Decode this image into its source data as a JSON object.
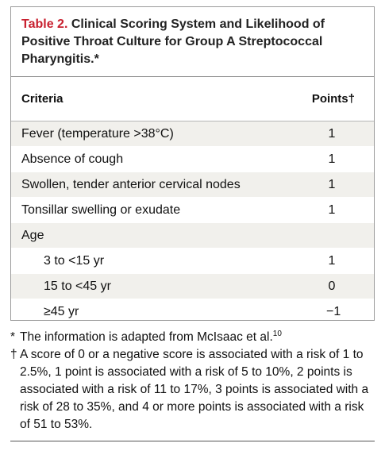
{
  "table": {
    "number": "Table 2.",
    "title": "Clinical Scoring System and Likelihood of Positive Throat Culture for Group A Streptococcal Pharyngitis.*",
    "headers": {
      "criteria": "Criteria",
      "points": "Points†"
    },
    "rows": [
      {
        "label": "Fever (temperature >38°C)",
        "points": "1"
      },
      {
        "label": "Absence of cough",
        "points": "1"
      },
      {
        "label": "Swollen, tender anterior cervical nodes",
        "points": "1"
      },
      {
        "label": "Tonsillar swelling or exudate",
        "points": "1"
      },
      {
        "label": "Age",
        "points": ""
      },
      {
        "label": "3 to <15 yr",
        "points": "1"
      },
      {
        "label": "15 to <45 yr",
        "points": "0"
      },
      {
        "label": "≥45 yr",
        "points": "−1"
      }
    ]
  },
  "notes": {
    "star_mark": "*",
    "star_text": "The information is adapted from McIsaac et al.",
    "star_ref": "10",
    "dagger_mark": "†",
    "dagger_text": "A score of 0 or a negative score is associated with a risk of 1 to 2.5%, 1 point is associated with a risk of 5 to 10%, 2 points is associated with a risk of 11 to 17%, 3 points is associated with a risk of 28 to 35%, and 4 or more points is associated with a risk of 51 to 53%."
  }
}
